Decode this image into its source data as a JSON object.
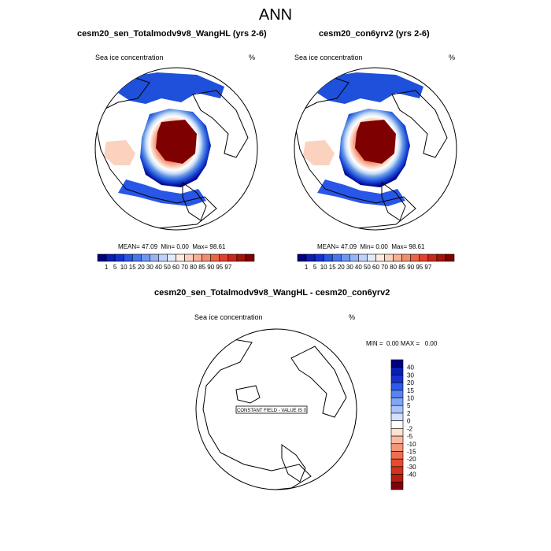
{
  "figure": {
    "title": "ANN",
    "left_panel_title": "cesm20_sen_Totalmodv9v8_WangHL (yrs 2-6)",
    "right_panel_title": "cesm20_con6yrv2 (yrs 2-6)",
    "diff_panel_title": "cesm20_sen_Totalmodv9v8_WangHL - cesm20_con6yrv2"
  },
  "colors": {
    "map_stops": [
      "#7f0000",
      "#c81e0a",
      "#e65a3c",
      "#f59073",
      "#fad2be",
      "#ffffff",
      "#c8dcf5",
      "#6496e6",
      "#1e50dc",
      "#00008c"
    ],
    "ramp": [
      "#00007f",
      "#0a1eb4",
      "#1432d2",
      "#2856e6",
      "#4678eb",
      "#6e96f0",
      "#96b4f5",
      "#bed2fa",
      "#e1ebfc",
      "#ffebe1",
      "#fcd2be",
      "#f7af96",
      "#f28c6e",
      "#eb6446",
      "#e1412d",
      "#c8281e",
      "#a0140a",
      "#7f0000"
    ],
    "diff_ramp": [
      "#000082",
      "#0a1eb4",
      "#1432d2",
      "#2d5aeb",
      "#5a82f0",
      "#82a5f5",
      "#aac3fa",
      "#d2e1fc",
      "#ffffff",
      "#fde1d2",
      "#fab9a0",
      "#f59678",
      "#ef6e50",
      "#e64b32",
      "#d2321e",
      "#b41e0f",
      "#82000a"
    ]
  },
  "chart_data": [
    {
      "type": "heatmap",
      "panel": "left",
      "field_label": "Sea ice concentration",
      "units": "%",
      "stats": {
        "mean": "47.09",
        "min": "0.00",
        "max": "98.61"
      },
      "stats_prefix": {
        "mean": "MEAN=",
        "min": "Min=",
        "max": "Max="
      },
      "colorbar_levels": [
        "1",
        "5",
        "10",
        "15",
        "20",
        "30",
        "40",
        "50",
        "60",
        "70",
        "80",
        "85",
        "90",
        "95",
        "97"
      ]
    },
    {
      "type": "heatmap",
      "panel": "right",
      "field_label": "Sea ice concentration",
      "units": "%",
      "stats": {
        "mean": "47.09",
        "min": "0.00",
        "max": "98.61"
      },
      "stats_prefix": {
        "mean": "MEAN=",
        "min": "Min=",
        "max": "Max="
      },
      "colorbar_levels": [
        "1",
        "5",
        "10",
        "15",
        "20",
        "30",
        "40",
        "50",
        "60",
        "70",
        "80",
        "85",
        "90",
        "95",
        "97"
      ]
    },
    {
      "type": "heatmap",
      "panel": "difference",
      "field_label": "Sea ice concentration",
      "units": "%",
      "stats_line": {
        "min_label": "MIN =",
        "min": "0.00",
        "max_label": "MAX =",
        "max": "0.00"
      },
      "constant_field_note": "CONSTANT FIELD - VALUE IS 0",
      "colorbar_levels": [
        "40",
        "30",
        "20",
        "15",
        "10",
        "5",
        "2",
        "0",
        "-2",
        "-5",
        "-10",
        "-15",
        "-20",
        "-30",
        "-40"
      ]
    }
  ]
}
